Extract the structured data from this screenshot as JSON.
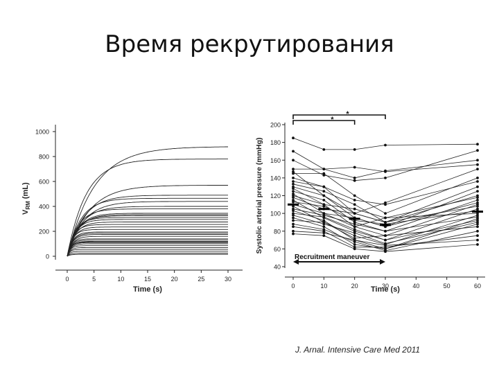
{
  "slide": {
    "title": "Время рекрутирования",
    "caption": "J. Arnal. Intensive Care Med 2011"
  },
  "chart_data": [
    {
      "type": "line",
      "xlabel": "Time (s)",
      "ylabel": "VRM (mL)",
      "ylabel_main": "V",
      "ylabel_sub": "RM",
      "ylabel_unit": " (mL)",
      "xlim": [
        0,
        30
      ],
      "ylim": [
        0,
        1000
      ],
      "xticks": [
        0,
        5,
        10,
        15,
        20,
        25,
        30
      ],
      "yticks": [
        0,
        200,
        400,
        600,
        800,
        1000
      ],
      "note": "Many individual exponential recruitment curves rising from 0 and plateauing; plateau levels (mL) listed below.",
      "plateaus": [
        880,
        780,
        570,
        490,
        465,
        440,
        400,
        380,
        345,
        335,
        325,
        310,
        295,
        275,
        255,
        235,
        215,
        195,
        185,
        175,
        160,
        140,
        130,
        120,
        115,
        110,
        100,
        85,
        70,
        55,
        40,
        25,
        15
      ],
      "time_constants_s": [
        5,
        3.5,
        4,
        3,
        2.5,
        3,
        2.5,
        2,
        2,
        2,
        1.8,
        1.5,
        1.5,
        1.5,
        1.2,
        1.2,
        1,
        1,
        1,
        1,
        1,
        0.8,
        0.8,
        0.8,
        0.7,
        0.7,
        0.7,
        0.6,
        0.6,
        0.5,
        0.5,
        0.5,
        0.5
      ]
    },
    {
      "type": "line",
      "xlabel": "Time (s)",
      "ylabel": "Systolic arterial pressure (mmHg)",
      "xlim": [
        0,
        60
      ],
      "ylim": [
        40,
        200
      ],
      "xticks": [
        0,
        10,
        20,
        30,
        40,
        50,
        60
      ],
      "yticks": [
        40,
        60,
        80,
        100,
        120,
        140,
        160,
        180,
        200
      ],
      "annotations": {
        "recruitment_label": "Recruitment maneuver",
        "sig_outer": "*",
        "sig_inner": "*"
      },
      "x": [
        0,
        10,
        20,
        30,
        60
      ],
      "series": [
        {
          "values": [
            185,
            172,
            172,
            177,
            178
          ]
        },
        {
          "values": [
            170,
            150,
            152,
            147,
            155
          ]
        },
        {
          "values": [
            160,
            143,
            137,
            140,
            171
          ]
        },
        {
          "values": [
            150,
            150,
            140,
            148,
            160
          ]
        },
        {
          "values": [
            147,
            120,
            100,
            112,
            150
          ]
        },
        {
          "values": [
            145,
            145,
            120,
            100,
            140
          ]
        },
        {
          "values": [
            140,
            130,
            100,
            90,
            120
          ]
        },
        {
          "values": [
            136,
            130,
            115,
            110,
            136
          ]
        },
        {
          "values": [
            133,
            125,
            110,
            90,
            130
          ]
        },
        {
          "values": [
            130,
            120,
            95,
            85,
            125
          ]
        },
        {
          "values": [
            128,
            110,
            105,
            95,
            118
          ]
        },
        {
          "values": [
            125,
            115,
            90,
            80,
            115
          ]
        },
        {
          "values": [
            122,
            100,
            95,
            85,
            112
          ]
        },
        {
          "values": [
            120,
            110,
            85,
            75,
            110
          ]
        },
        {
          "values": [
            118,
            105,
            100,
            90,
            108
          ]
        },
        {
          "values": [
            115,
            95,
            80,
            70,
            105
          ]
        },
        {
          "values": [
            113,
            108,
            92,
            88,
            103
          ]
        },
        {
          "values": [
            110,
            100,
            85,
            95,
            100
          ]
        },
        {
          "values": [
            108,
            90,
            75,
            65,
            98
          ]
        },
        {
          "values": [
            105,
            98,
            88,
            80,
            96
          ]
        },
        {
          "values": [
            103,
            92,
            70,
            60,
            94
          ]
        },
        {
          "values": [
            100,
            96,
            82,
            70,
            92
          ]
        },
        {
          "values": [
            98,
            88,
            78,
            66,
            90
          ]
        },
        {
          "values": [
            95,
            85,
            65,
            60,
            88
          ]
        },
        {
          "values": [
            92,
            90,
            72,
            75,
            85
          ]
        },
        {
          "values": [
            88,
            82,
            68,
            58,
            80
          ]
        },
        {
          "values": [
            85,
            80,
            62,
            62,
            75
          ]
        },
        {
          "values": [
            80,
            78,
            70,
            64,
            70
          ]
        },
        {
          "values": [
            77,
            75,
            60,
            57,
            65
          ]
        }
      ],
      "means": [
        110,
        105,
        94,
        87,
        102
      ]
    }
  ]
}
